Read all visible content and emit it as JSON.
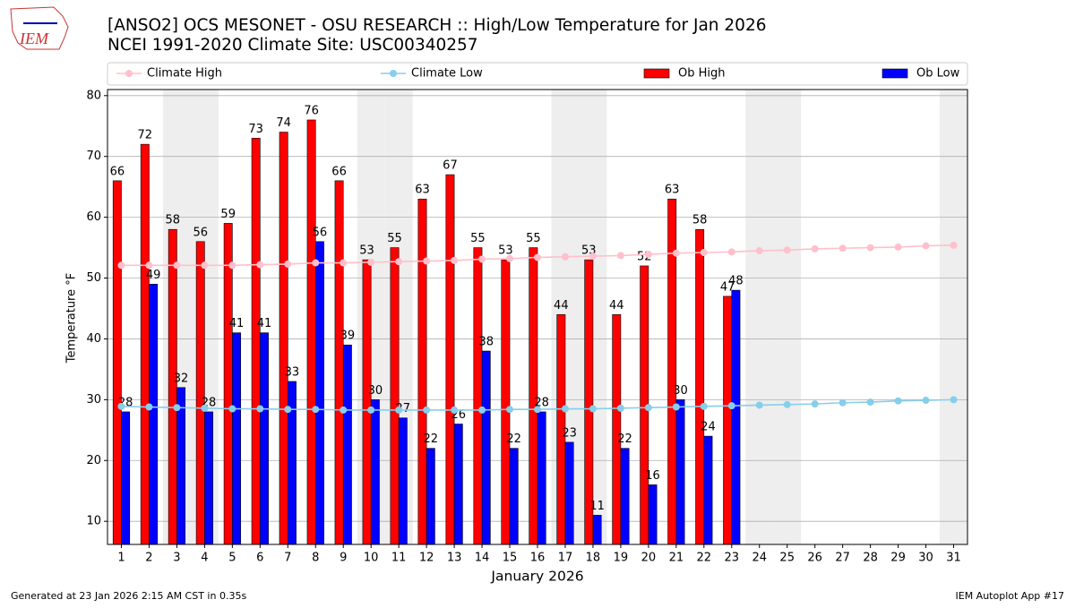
{
  "chart_data": {
    "type": "bar",
    "logo_text": "IEM",
    "title": "[ANSO2] OCS MESONET - OSU RESEARCH :: High/Low Temperature for Jan 2026",
    "subtitle": "NCEI 1991-2020 Climate Site: USC00340257",
    "x_label": "January 2026",
    "y_label": "Temperature °F",
    "footer_left": "Generated at 23 Jan 2026 2:15 AM CST in 0.35s",
    "footer_right": "IEM Autoplot App #17",
    "x": [
      1,
      2,
      3,
      4,
      5,
      6,
      7,
      8,
      9,
      10,
      11,
      12,
      13,
      14,
      15,
      16,
      17,
      18,
      19,
      20,
      21,
      22,
      23,
      24,
      25,
      26,
      27,
      28,
      29,
      30,
      31
    ],
    "xlim": [
      0.5,
      31.5
    ],
    "xticks": [
      1,
      2,
      3,
      4,
      5,
      6,
      7,
      8,
      9,
      10,
      11,
      12,
      13,
      14,
      15,
      16,
      17,
      18,
      19,
      20,
      21,
      22,
      23,
      24,
      25,
      26,
      27,
      28,
      29,
      30,
      31
    ],
    "ylim": [
      6.2,
      81
    ],
    "yticks": [
      10,
      20,
      30,
      40,
      50,
      60,
      70,
      80
    ],
    "grid": true,
    "shaded_days": [
      3,
      4,
      10,
      11,
      17,
      18,
      24,
      25,
      31
    ],
    "shade_color": "#eeeeee",
    "series": [
      {
        "name": "Climate High",
        "style": "line",
        "color": "#ffc0cb",
        "values": [
          52.1,
          52.1,
          52.1,
          52.1,
          52.1,
          52.2,
          52.3,
          52.5,
          52.5,
          52.6,
          52.7,
          52.8,
          52.9,
          53.1,
          53.2,
          53.4,
          53.5,
          53.6,
          53.7,
          53.9,
          54.1,
          54.2,
          54.3,
          54.5,
          54.6,
          54.8,
          54.9,
          55.0,
          55.1,
          55.3,
          55.4
        ]
      },
      {
        "name": "Climate Low",
        "style": "line",
        "color": "#87ceeb",
        "values": [
          28.9,
          28.8,
          28.7,
          28.6,
          28.5,
          28.5,
          28.4,
          28.4,
          28.3,
          28.3,
          28.3,
          28.3,
          28.3,
          28.3,
          28.4,
          28.4,
          28.5,
          28.5,
          28.6,
          28.7,
          28.8,
          28.9,
          29.0,
          29.1,
          29.2,
          29.3,
          29.5,
          29.6,
          29.8,
          29.9,
          30.0
        ]
      },
      {
        "name": "Ob High",
        "style": "bar",
        "offset": -1,
        "color": "#ff0000",
        "values": [
          66,
          72,
          58,
          56,
          59,
          73,
          74,
          76,
          66,
          53,
          55,
          63,
          67,
          55,
          53,
          55,
          44,
          53,
          44,
          52,
          63,
          58,
          47,
          null,
          null,
          null,
          null,
          null,
          null,
          null,
          null
        ]
      },
      {
        "name": "Ob Low",
        "style": "bar",
        "offset": 1,
        "color": "#0000ff",
        "values": [
          28,
          49,
          32,
          28,
          41,
          41,
          33,
          56,
          39,
          30,
          27,
          22,
          26,
          38,
          22,
          28,
          23,
          11,
          22,
          16,
          30,
          24,
          48,
          null,
          null,
          null,
          null,
          null,
          null,
          null,
          null
        ]
      }
    ]
  }
}
